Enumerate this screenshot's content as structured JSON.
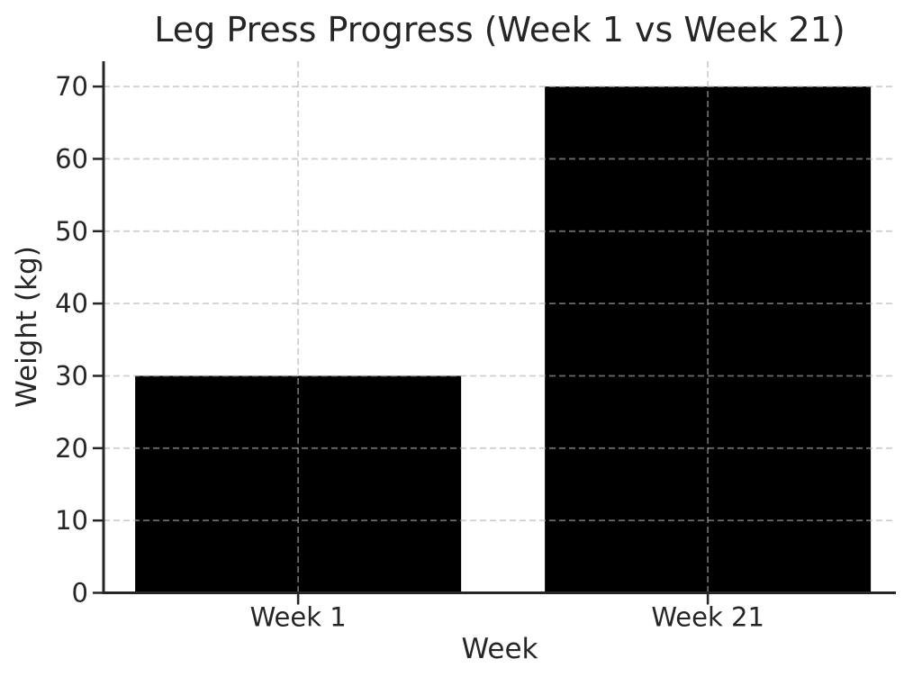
{
  "chart_data": {
    "type": "bar",
    "title": "Leg Press Progress (Week 1 vs Week 21)",
    "categories": [
      "Week 1",
      "Week 21"
    ],
    "values": [
      30,
      70
    ],
    "xlabel": "Week",
    "ylabel": "Weight (kg)",
    "ylim": [
      0,
      73.5
    ],
    "yticks": [
      0,
      10,
      20,
      30,
      40,
      50,
      60,
      70
    ],
    "bar_color": "#000000",
    "grid": true,
    "grid_line_style": "dashed",
    "grid_color": "#b0b0b0",
    "grid_alpha": 0.6,
    "axis_color": "#262626",
    "text_color": "#262626",
    "background_color": "#ffffff",
    "legend": null
  }
}
